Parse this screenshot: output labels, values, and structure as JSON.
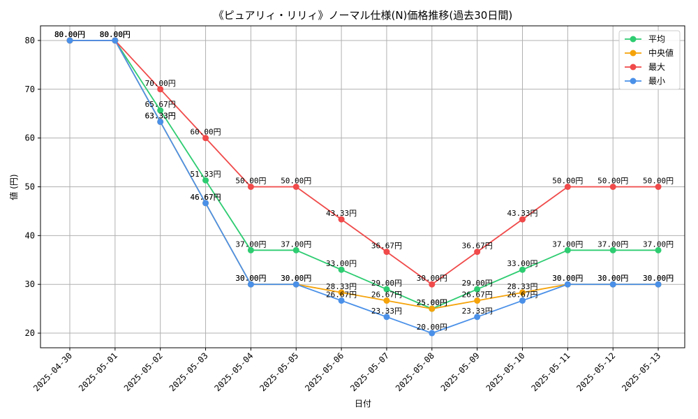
{
  "chart_data": {
    "type": "line",
    "title": "《ピュアリィ・リリィ》ノーマル仕様(N)価格推移(過去30日間)",
    "xlabel": "日付",
    "ylabel": "値 (円)",
    "categories": [
      "2025-04-30",
      "2025-05-01",
      "2025-05-02",
      "2025-05-03",
      "2025-05-04",
      "2025-05-05",
      "2025-05-06",
      "2025-05-07",
      "2025-05-08",
      "2025-05-09",
      "2025-05-10",
      "2025-05-11",
      "2025-05-12",
      "2025-05-13"
    ],
    "ylim": [
      17,
      83
    ],
    "yticks": [
      20,
      30,
      40,
      50,
      60,
      70,
      80
    ],
    "grid": true,
    "legend_position": "top-right",
    "label_suffix": "円",
    "series": [
      {
        "name": "平均",
        "color": "#2ecc71",
        "values": [
          80.0,
          80.0,
          65.67,
          51.33,
          37.0,
          37.0,
          33.0,
          29.0,
          25.0,
          29.0,
          33.0,
          37.0,
          37.0,
          37.0
        ]
      },
      {
        "name": "中央値",
        "color": "#f5a30a",
        "values": [
          80.0,
          80.0,
          63.33,
          46.67,
          30.0,
          30.0,
          28.33,
          26.67,
          25.0,
          26.67,
          28.33,
          30.0,
          30.0,
          30.0
        ]
      },
      {
        "name": "最大",
        "color": "#f04a4a",
        "values": [
          80.0,
          80.0,
          70.0,
          60.0,
          50.0,
          50.0,
          43.33,
          36.67,
          30.0,
          36.67,
          43.33,
          50.0,
          50.0,
          50.0
        ]
      },
      {
        "name": "最小",
        "color": "#4a90e8",
        "values": [
          80.0,
          80.0,
          63.33,
          46.67,
          30.0,
          30.0,
          26.67,
          23.33,
          20.0,
          23.33,
          26.67,
          30.0,
          30.0,
          30.0
        ]
      }
    ]
  }
}
